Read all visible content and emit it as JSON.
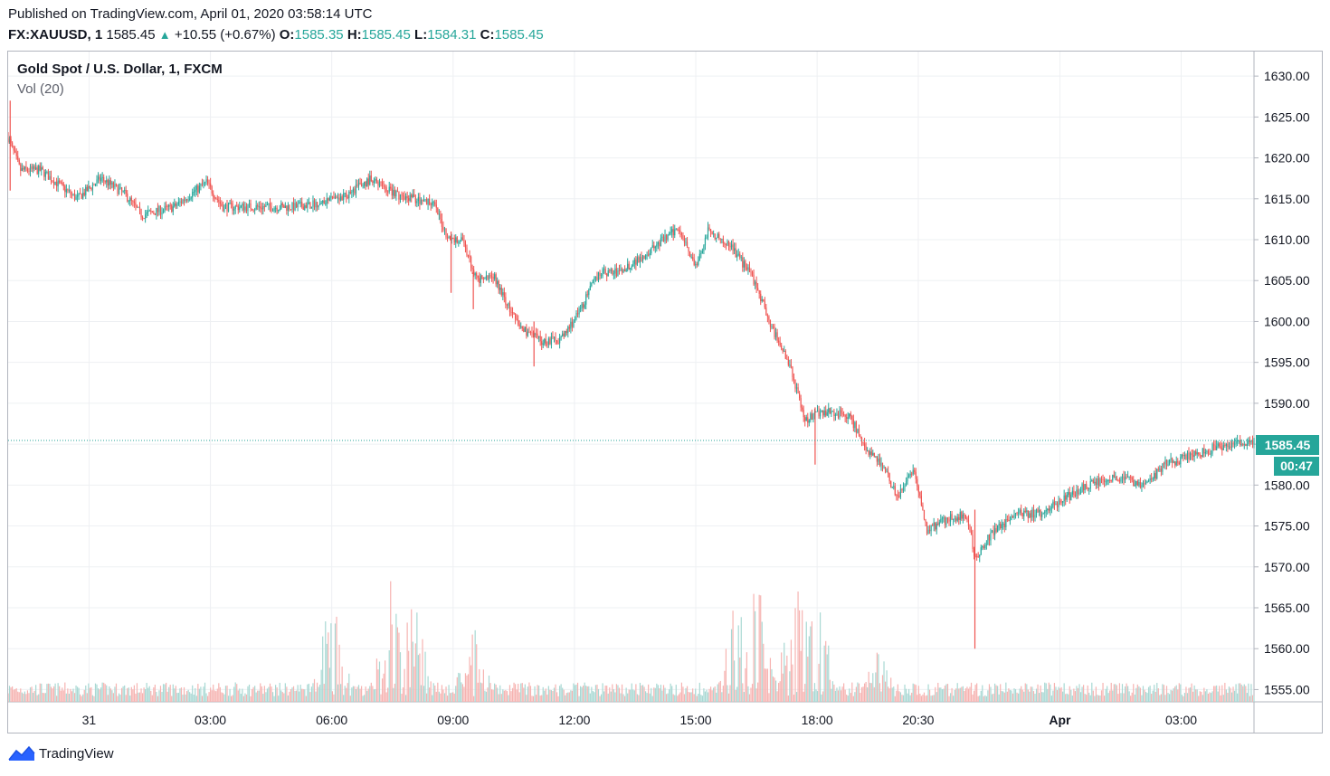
{
  "header": {
    "published": "Published on TradingView.com, April 01, 2020 03:58:14 UTC",
    "symbol": "FX:XAUUSD, 1",
    "last": "1585.45",
    "change": "+10.55 (+0.67%)",
    "o_label": "O:",
    "o_value": "1585.35",
    "h_label": "H:",
    "h_value": "1585.45",
    "l_label": "L:",
    "l_value": "1584.31",
    "c_label": "C:",
    "c_value": "1585.45"
  },
  "legend": {
    "title": "Gold Spot / U.S. Dollar, 1, FXCM",
    "volume": "Vol (20)"
  },
  "price_tag": "1585.45",
  "countdown_tag": "00:47",
  "footer": {
    "brand": "TradingView"
  },
  "colors": {
    "up": "#26a69a",
    "down": "#ef5350",
    "vol_up": "#a8d8d3",
    "vol_down": "#f6b3b1",
    "grid": "#eef0f3"
  },
  "chart_data": {
    "type": "candlestick",
    "title": "Gold Spot / U.S. Dollar, 1, FXCM",
    "y_ticks": [
      "1630.00",
      "1625.00",
      "1620.00",
      "1615.00",
      "1610.00",
      "1605.00",
      "1600.00",
      "1595.00",
      "1590.00",
      "1585.00",
      "1580.00",
      "1575.00",
      "1570.00",
      "1565.00",
      "1560.00",
      "1555.00"
    ],
    "x_ticks": [
      "31",
      "03:00",
      "06:00",
      "09:00",
      "12:00",
      "15:00",
      "18:00",
      "20:30",
      "Apr",
      "03:00"
    ],
    "ylim": [
      1553.5,
      1633
    ],
    "x_tick_hours": [
      0,
      3,
      6,
      9,
      12,
      15,
      18,
      20.5,
      24,
      27
    ],
    "x_range_hours": [
      -2,
      28.8
    ],
    "price_path": [
      {
        "t": -2.0,
        "p": 1622.5
      },
      {
        "t": -1.7,
        "p": 1618.5
      },
      {
        "t": -1.2,
        "p": 1618.5
      },
      {
        "t": -0.3,
        "p": 1615.0
      },
      {
        "t": 0.3,
        "p": 1617.5
      },
      {
        "t": 0.9,
        "p": 1615.5
      },
      {
        "t": 1.3,
        "p": 1613.0
      },
      {
        "t": 2.1,
        "p": 1614.0
      },
      {
        "t": 2.9,
        "p": 1617.0
      },
      {
        "t": 3.3,
        "p": 1614.0
      },
      {
        "t": 4.2,
        "p": 1614.0
      },
      {
        "t": 5.1,
        "p": 1614.0
      },
      {
        "t": 6.2,
        "p": 1615.0
      },
      {
        "t": 7.0,
        "p": 1617.5
      },
      {
        "t": 7.6,
        "p": 1615.5
      },
      {
        "t": 8.5,
        "p": 1614.5
      },
      {
        "t": 8.9,
        "p": 1610.0
      },
      {
        "t": 9.2,
        "p": 1610.0
      },
      {
        "t": 9.6,
        "p": 1605.0
      },
      {
        "t": 10.0,
        "p": 1605.5
      },
      {
        "t": 10.6,
        "p": 1599.5
      },
      {
        "t": 11.2,
        "p": 1597.5
      },
      {
        "t": 11.7,
        "p": 1598.0
      },
      {
        "t": 12.1,
        "p": 1601.0
      },
      {
        "t": 12.6,
        "p": 1606.0
      },
      {
        "t": 13.1,
        "p": 1606.0
      },
      {
        "t": 13.7,
        "p": 1608.0
      },
      {
        "t": 14.2,
        "p": 1610.0
      },
      {
        "t": 14.6,
        "p": 1611.5
      },
      {
        "t": 15.0,
        "p": 1606.5
      },
      {
        "t": 15.3,
        "p": 1611.0
      },
      {
        "t": 15.8,
        "p": 1609.5
      },
      {
        "t": 16.4,
        "p": 1605.5
      },
      {
        "t": 16.9,
        "p": 1599.0
      },
      {
        "t": 17.3,
        "p": 1595.0
      },
      {
        "t": 17.7,
        "p": 1588.0
      },
      {
        "t": 18.1,
        "p": 1589.0
      },
      {
        "t": 18.8,
        "p": 1588.5
      },
      {
        "t": 19.2,
        "p": 1584.5
      },
      {
        "t": 19.6,
        "p": 1582.5
      },
      {
        "t": 20.0,
        "p": 1578.5
      },
      {
        "t": 20.4,
        "p": 1582.0
      },
      {
        "t": 20.7,
        "p": 1574.5
      },
      {
        "t": 21.3,
        "p": 1576.0
      },
      {
        "t": 21.7,
        "p": 1576.5
      },
      {
        "t": 21.9,
        "p": 1571.0
      },
      {
        "t": 22.3,
        "p": 1574.0
      },
      {
        "t": 22.9,
        "p": 1576.5
      },
      {
        "t": 23.5,
        "p": 1576.5
      },
      {
        "t": 24.0,
        "p": 1578.0
      },
      {
        "t": 24.7,
        "p": 1580.0
      },
      {
        "t": 25.4,
        "p": 1581.0
      },
      {
        "t": 26.1,
        "p": 1580.0
      },
      {
        "t": 26.6,
        "p": 1582.5
      },
      {
        "t": 27.2,
        "p": 1583.5
      },
      {
        "t": 27.8,
        "p": 1584.5
      },
      {
        "t": 28.8,
        "p": 1585.45
      }
    ],
    "spike_wicks": [
      {
        "t": -1.95,
        "high": 1627.0,
        "low": 1616.0
      },
      {
        "t": 8.95,
        "high": 1611.0,
        "low": 1603.5
      },
      {
        "t": 9.5,
        "high": 1606.0,
        "low": 1601.5
      },
      {
        "t": 11.0,
        "high": 1600.0,
        "low": 1594.5
      },
      {
        "t": 17.95,
        "high": 1589.5,
        "low": 1582.5
      },
      {
        "t": 21.9,
        "high": 1577.0,
        "low": 1560.0
      }
    ],
    "volume_axis_max": 1570.5,
    "volume_spikes": [
      {
        "t": 6.0,
        "v": 0.8
      },
      {
        "t": 7.5,
        "v": 0.95
      },
      {
        "t": 8.0,
        "v": 0.8
      },
      {
        "t": 9.5,
        "v": 0.6
      },
      {
        "t": 16.0,
        "v": 0.85
      },
      {
        "t": 16.5,
        "v": 1.0
      },
      {
        "t": 17.5,
        "v": 1.0
      },
      {
        "t": 18.0,
        "v": 0.8
      },
      {
        "t": 19.5,
        "v": 0.4
      }
    ]
  }
}
